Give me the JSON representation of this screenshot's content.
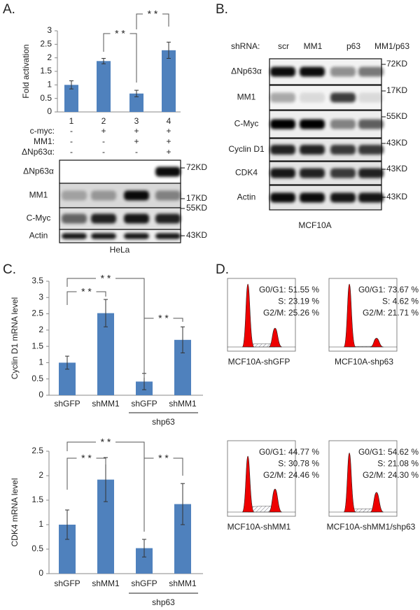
{
  "panel_labels": [
    "A.",
    "B.",
    "C.",
    "D."
  ],
  "chart_data": [
    {
      "type": "bar",
      "y_label": "Fold activation",
      "categories": [
        "1",
        "2",
        "3",
        "4"
      ],
      "values": [
        1,
        1.88,
        0.68,
        2.28
      ],
      "errors": [
        0.15,
        0.1,
        0.12,
        0.3
      ],
      "color": "#4f81bd",
      "ylim": [
        0,
        3
      ],
      "yticks": [
        0,
        0.5,
        1,
        1.5,
        2,
        2.5,
        3
      ],
      "annotations": [
        "* *",
        "* *"
      ]
    },
    {
      "type": "bar",
      "y_label": "Cyclin D1 mRNA level",
      "categories": [
        "shGFP",
        "shMM1",
        "shGFP",
        "shMM1"
      ],
      "values": [
        1,
        2.52,
        0.42,
        1.7
      ],
      "errors": [
        0.2,
        0.42,
        0.25,
        0.4
      ],
      "color": "#4f81bd",
      "ylim": [
        0,
        3.5
      ],
      "yticks": [
        0,
        0.5,
        1,
        1.5,
        2,
        2.5,
        3,
        3.5
      ],
      "annotations": [
        "* *",
        "* *",
        "* *"
      ],
      "group_label": "shp63"
    },
    {
      "type": "bar",
      "y_label": "CDK4 mRNA level",
      "categories": [
        "shGFP",
        "shMM1",
        "shGFP",
        "shMM1"
      ],
      "values": [
        1,
        1.92,
        0.52,
        1.42
      ],
      "errors": [
        0.3,
        0.45,
        0.18,
        0.42
      ],
      "color": "#4f81bd",
      "ylim": [
        0,
        2.5
      ],
      "yticks": [
        0,
        0.5,
        1,
        1.5,
        2,
        2.5
      ],
      "annotations": [
        "* *",
        "* *",
        "* *"
      ],
      "group_label": "shp63"
    }
  ],
  "panel_a": {
    "conditions": [
      {
        "label": "c-myc:",
        "marks": [
          "-",
          "+",
          "+",
          "+"
        ]
      },
      {
        "label": "MM1:",
        "marks": [
          "-",
          "-",
          "+",
          "+"
        ]
      },
      {
        "label": "ΔNp63α:",
        "marks": [
          "-",
          "-",
          "-",
          "+"
        ]
      }
    ],
    "blot": {
      "rows": [
        {
          "label": "ΔNp63α",
          "size": "72KD"
        },
        {
          "label": "MM1",
          "size": "17KD"
        },
        {
          "label": "C-Myc",
          "size": "55KD"
        },
        {
          "label": "Actin",
          "size": "43KD"
        }
      ],
      "cell_line": "HeLa"
    }
  },
  "panel_b": {
    "header_label": "shRNA:",
    "lanes": [
      "scr",
      "MM1",
      "p63",
      "MM1/p63"
    ],
    "rows": [
      {
        "label": "ΔNp63α",
        "size": "72KD"
      },
      {
        "label": "MM1",
        "size": "17KD"
      },
      {
        "label": "C-Myc",
        "size": "55KD"
      },
      {
        "label": "Cyclin D1",
        "size": "43KD"
      },
      {
        "label": "CDK4",
        "size": "43KD"
      },
      {
        "label": "Actin",
        "size": "43KD"
      }
    ],
    "cell_line": "MCF10A"
  },
  "panel_d": {
    "plots": [
      {
        "stats": [
          "G0/G1: 51.55 %",
          "S: 23.19 %",
          "G2/M: 25.26 %"
        ],
        "caption": "MCF10A-shGFP"
      },
      {
        "stats": [
          "G0/G1: 73.67 %",
          "S: 4.62 %",
          "G2/M: 21.71 %"
        ],
        "caption": "MCF10A-shp63"
      },
      {
        "stats": [
          "G0/G1: 44.77 %",
          "S: 30.78 %",
          "G2/M: 24.46 %"
        ],
        "caption": "MCF10A-shMM1"
      },
      {
        "stats": [
          "G0/G1: 54.62 %",
          "S: 21.08 %",
          "G2/M: 24.30 %"
        ],
        "caption": "MCF10A-shMM1/shp63"
      }
    ]
  }
}
